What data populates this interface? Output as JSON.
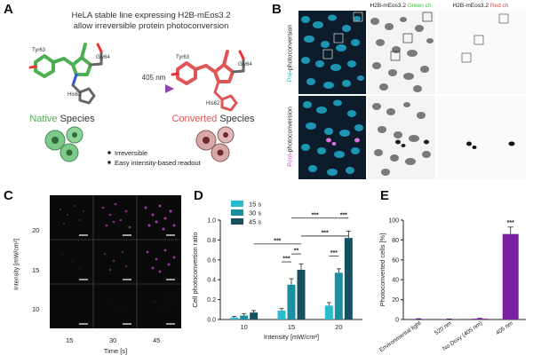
{
  "panelA": {
    "letter": "A",
    "title1": "HeLA stable line expressing H2B-mEos3.2",
    "title2": "allow irreversible protein photoconversion",
    "residues_native": [
      "Tyr63",
      "Gly64",
      "His62"
    ],
    "residues_converted": [
      "Tyr63",
      "Gly64",
      "His62"
    ],
    "arrow_label": "405 nm",
    "native_word": "Native",
    "converted_word": "Converted",
    "species_word": "Species",
    "bullets": [
      "Irreversible",
      "Easy intensity-based readout"
    ],
    "colors": {
      "native": "#4caf50",
      "converted": "#e05555",
      "arrow": "#9b59d0"
    }
  },
  "panelB": {
    "letter": "B",
    "col_headers": [
      {
        "prefix": "H2B-mEos3.2 ",
        "suffix": "Green ch",
        "suffix_color": "#3fbf3f"
      },
      {
        "prefix": "H2B-mEos3.2 ",
        "suffix": "Red ch",
        "suffix_color": "#e04040"
      }
    ],
    "row_pre": {
      "prefix": "Pre",
      "rest": "-photoconversion",
      "prefix_color": "#2ab6c8"
    },
    "row_post": {
      "prefix": "Post",
      "rest": "-photoconversion",
      "prefix_color": "#d050d0"
    }
  },
  "panelC": {
    "letter": "C",
    "ylabel": "Intensity [mW/cm²]",
    "xlabel": "Time [s]",
    "row_labels": [
      "20",
      "15",
      "10"
    ],
    "col_labels": [
      "15",
      "30",
      "45"
    ]
  },
  "panelD": {
    "letter": "D",
    "legend": [
      "15 s",
      "30 s",
      "45 s"
    ],
    "ylabel": "Cell photoconvertion ratio",
    "significance": "***",
    "significance2": "**"
  },
  "panelE": {
    "letter": "E",
    "ylabel": "Photoconverted cells [%]",
    "significance": "***"
  },
  "chart_data": [
    {
      "type": "bar",
      "categories": [
        "10",
        "15",
        "20"
      ],
      "xlabel": "Intensity [mW/cm²]",
      "ylabel": "Cell photoconvertion ratio",
      "ylim": [
        0,
        1.0
      ],
      "yticks": [
        "0.0",
        "0.2",
        "0.4",
        "0.6",
        "0.8",
        "1.0"
      ],
      "series": [
        {
          "name": "15 s",
          "color": "#2bbccb",
          "values": [
            0.02,
            0.09,
            0.14
          ],
          "errors": [
            0.01,
            0.02,
            0.03
          ]
        },
        {
          "name": "30 s",
          "color": "#1a8fa0",
          "values": [
            0.04,
            0.35,
            0.47
          ],
          "errors": [
            0.02,
            0.06,
            0.04
          ]
        },
        {
          "name": "45 s",
          "color": "#17505e",
          "values": [
            0.07,
            0.5,
            0.82
          ],
          "errors": [
            0.02,
            0.06,
            0.07
          ]
        }
      ],
      "grid": false
    },
    {
      "type": "bar",
      "categories": [
        "Environmental light",
        "520 nm",
        "No Doxy (405 nm)",
        "405 nm"
      ],
      "ylabel": "Photoconverted cells [%]",
      "ylim": [
        0,
        100
      ],
      "yticks": [
        "0",
        "20",
        "40",
        "60",
        "80",
        "100"
      ],
      "values": [
        0.5,
        0.3,
        0.8,
        86
      ],
      "errors": [
        0.3,
        0.2,
        0.4,
        7
      ],
      "color": "#7b1fa2",
      "grid": false
    }
  ]
}
